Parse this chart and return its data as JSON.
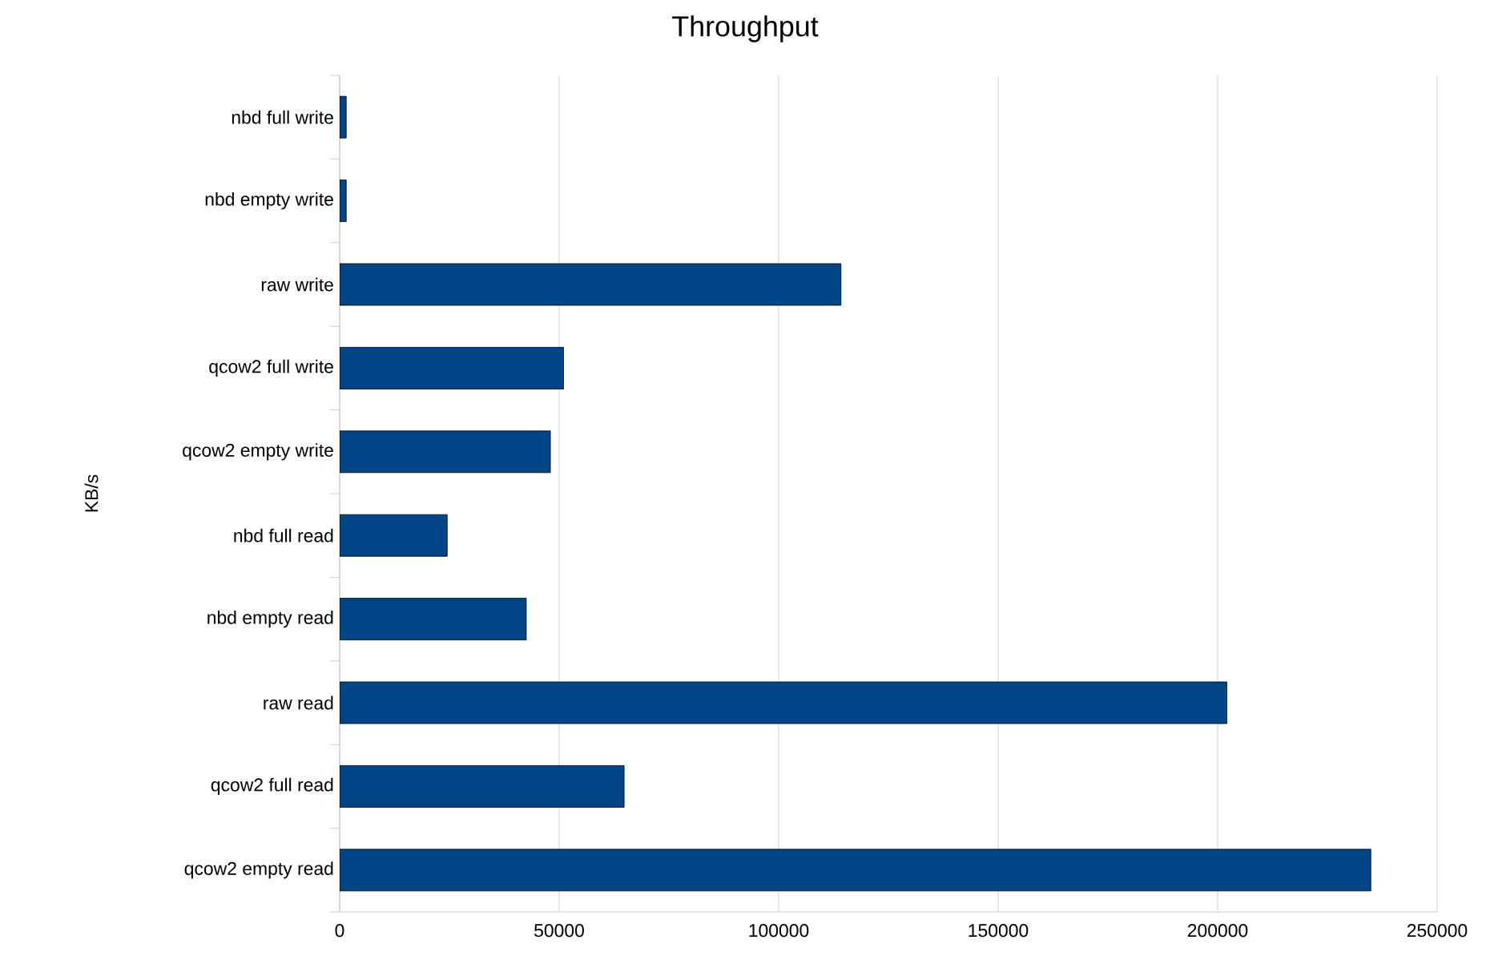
{
  "chart_data": {
    "type": "bar",
    "orientation": "horizontal",
    "title": "Throughput",
    "ylabel": "KB/s",
    "categories": [
      "nbd full write",
      "nbd empty write",
      "raw write",
      "qcow2 full write",
      "qcow2 empty write",
      "nbd full read",
      "nbd empty read",
      "raw read",
      "qcow2 full read",
      "qcow2 empty read"
    ],
    "values": [
      1500,
      1500,
      114200,
      51000,
      48000,
      24500,
      42500,
      202100,
      64800,
      234900
    ],
    "color": "#004586",
    "xlim": [
      0,
      250000
    ],
    "xticks": [
      0,
      50000,
      100000,
      150000,
      200000,
      250000
    ],
    "grid": "x"
  }
}
